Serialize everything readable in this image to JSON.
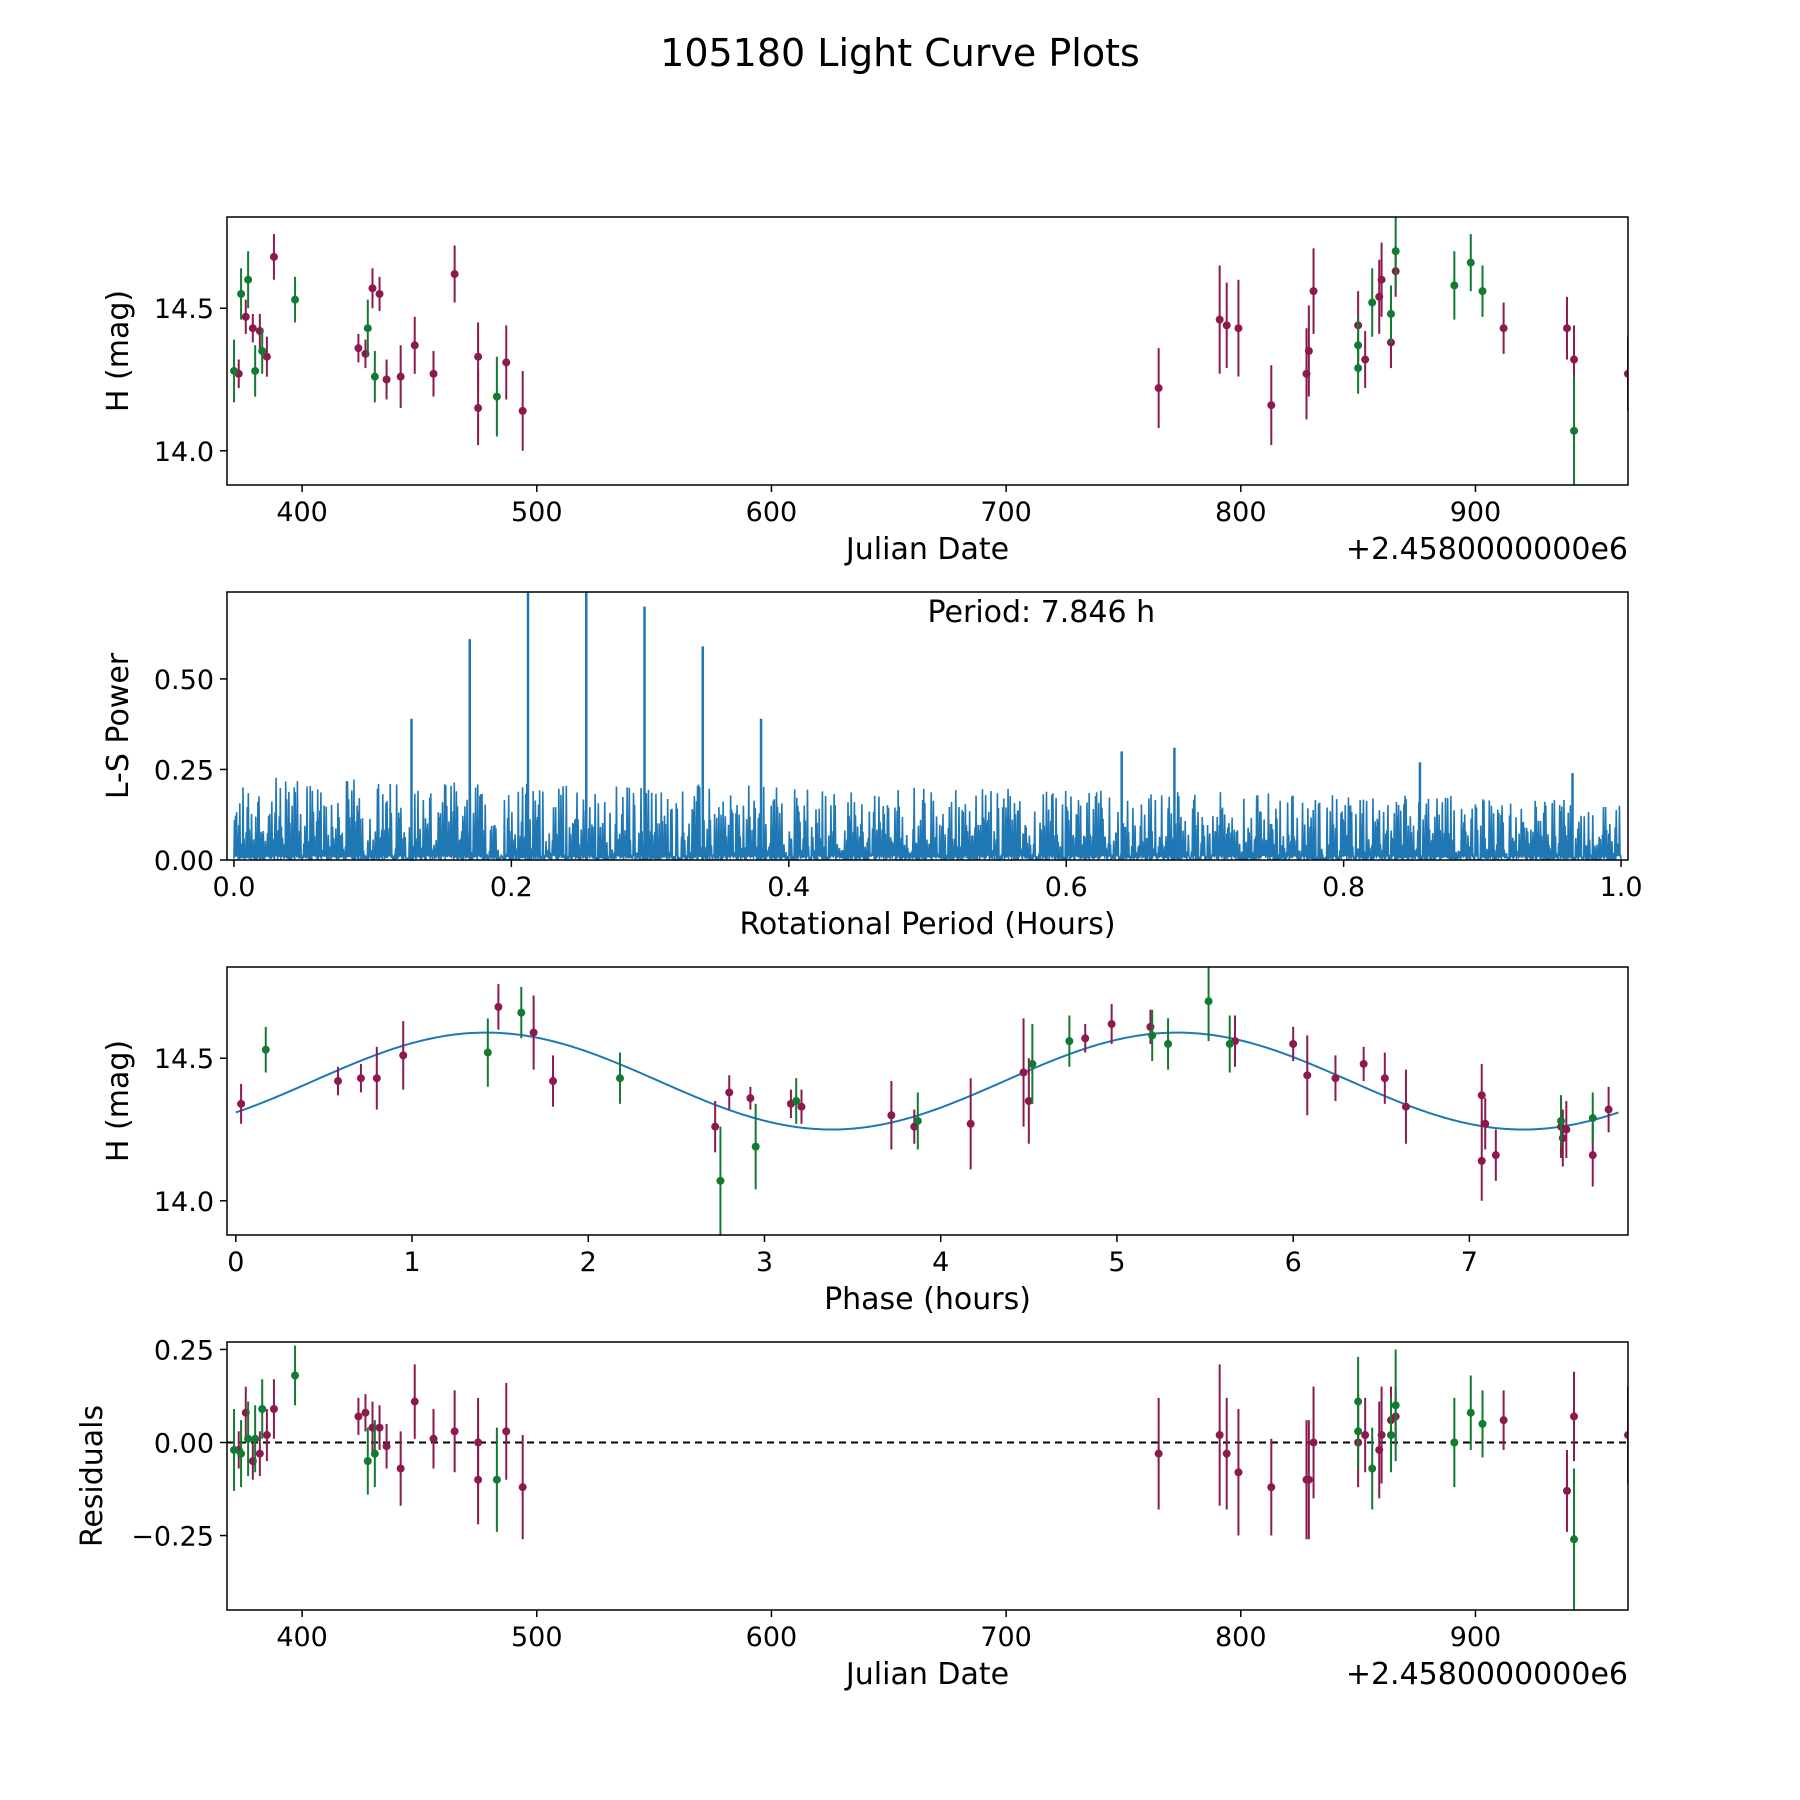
{
  "figure_title": "105180 Light Curve Plots",
  "colors": {
    "red_band": "#8b1a4f",
    "green_band": "#137a32",
    "curve": "#1f77b4",
    "zero_line": "#000000"
  },
  "chart_data": [
    {
      "type": "scatter",
      "id": "lightcurve",
      "title": "",
      "xlabel": "Julian Date",
      "ylabel": "H (mag)",
      "offset_label": "+2.4580000000e6",
      "xlim": [
        368,
        965
      ],
      "ylim": [
        13.88,
        14.82
      ],
      "xticks": [
        400,
        500,
        600,
        700,
        800,
        900
      ],
      "yticks": [
        14.0,
        14.5
      ],
      "ytick_labels": [
        "14.0",
        "14.5"
      ],
      "series": [
        {
          "name": "red",
          "color": "#8b1a4f",
          "points": [
            [
              373,
              14.27,
              0.05
            ],
            [
              376,
              14.47,
              0.06
            ],
            [
              379,
              14.43,
              0.05
            ],
            [
              382,
              14.42,
              0.06
            ],
            [
              385,
              14.33,
              0.07
            ],
            [
              388,
              14.68,
              0.08
            ],
            [
              424,
              14.36,
              0.05
            ],
            [
              427,
              14.34,
              0.05
            ],
            [
              430,
              14.57,
              0.07
            ],
            [
              433,
              14.55,
              0.06
            ],
            [
              436,
              14.25,
              0.07
            ],
            [
              442,
              14.26,
              0.11
            ],
            [
              448,
              14.37,
              0.1
            ],
            [
              456,
              14.27,
              0.08
            ],
            [
              465,
              14.62,
              0.1
            ],
            [
              475,
              14.33,
              0.12
            ],
            [
              475,
              14.15,
              0.13
            ],
            [
              487,
              14.31,
              0.13
            ],
            [
              494,
              14.14,
              0.14
            ],
            [
              765,
              14.22,
              0.14
            ],
            [
              791,
              14.46,
              0.19
            ],
            [
              794,
              14.44,
              0.15
            ],
            [
              799,
              14.43,
              0.17
            ],
            [
              813,
              14.16,
              0.14
            ],
            [
              828,
              14.27,
              0.16
            ],
            [
              829,
              14.35,
              0.16
            ],
            [
              831,
              14.56,
              0.15
            ],
            [
              850,
              14.44,
              0.12
            ],
            [
              853,
              14.32,
              0.1
            ],
            [
              859,
              14.54,
              0.13
            ],
            [
              860,
              14.6,
              0.13
            ],
            [
              864,
              14.38,
              0.09
            ],
            [
              866,
              14.63,
              0.09
            ],
            [
              912,
              14.43,
              0.09
            ],
            [
              939,
              14.43,
              0.11
            ],
            [
              942,
              14.32,
              0.12
            ],
            [
              965,
              14.27,
              0.13
            ]
          ]
        },
        {
          "name": "green",
          "color": "#137a32",
          "points": [
            [
              371,
              14.28,
              0.11
            ],
            [
              374,
              14.55,
              0.09
            ],
            [
              377,
              14.6,
              0.1
            ],
            [
              380,
              14.28,
              0.09
            ],
            [
              383,
              14.35,
              0.08
            ],
            [
              397,
              14.53,
              0.08
            ],
            [
              428,
              14.43,
              0.1
            ],
            [
              431,
              14.26,
              0.09
            ],
            [
              483,
              14.19,
              0.14
            ],
            [
              850,
              14.37,
              0.1
            ],
            [
              850,
              14.29,
              0.09
            ],
            [
              856,
              14.52,
              0.12
            ],
            [
              864,
              14.48,
              0.1
            ],
            [
              866,
              14.7,
              0.14
            ],
            [
              891,
              14.58,
              0.12
            ],
            [
              898,
              14.66,
              0.1
            ],
            [
              903,
              14.56,
              0.09
            ],
            [
              942,
              14.07,
              0.19
            ]
          ]
        }
      ]
    },
    {
      "type": "line",
      "id": "periodogram",
      "title": "",
      "xlabel": "Rotational Period (Hours)",
      "ylabel": "L-S Power",
      "annotation": "Period: 7.846 h",
      "xlim": [
        -0.005,
        1.005
      ],
      "ylim": [
        0.0,
        0.74
      ],
      "xticks": [
        0.0,
        0.2,
        0.4,
        0.6,
        0.8,
        1.0
      ],
      "xtick_labels": [
        "0.0",
        "0.2",
        "0.4",
        "0.6",
        "0.8",
        "1.0"
      ],
      "yticks": [
        0.0,
        0.25,
        0.5
      ],
      "ytick_labels": [
        "0.00",
        "0.25",
        "0.50"
      ],
      "x_range": [
        0.0,
        1.0
      ],
      "noise_level": {
        "start": 0.23,
        "end": 0.17
      },
      "peaks": [
        [
          0.128,
          0.39
        ],
        [
          0.17,
          0.61
        ],
        [
          0.212,
          0.74
        ],
        [
          0.254,
          0.74
        ],
        [
          0.296,
          0.7
        ],
        [
          0.338,
          0.59
        ],
        [
          0.38,
          0.39
        ],
        [
          0.64,
          0.3
        ],
        [
          0.678,
          0.31
        ],
        [
          0.855,
          0.27
        ],
        [
          0.965,
          0.24
        ]
      ]
    },
    {
      "type": "scatter",
      "id": "phased",
      "title": "",
      "xlabel": "Phase (hours)",
      "ylabel": "H (mag)",
      "xlim": [
        -0.05,
        7.9
      ],
      "ylim": [
        13.88,
        14.82
      ],
      "xticks": [
        0,
        1,
        2,
        3,
        4,
        5,
        6,
        7
      ],
      "yticks": [
        14.0,
        14.5
      ],
      "ytick_labels": [
        "14.0",
        "14.5"
      ],
      "model": {
        "mean": 14.42,
        "amplitude": 0.17,
        "period_hours": 7.846,
        "peak_phase": 1.42
      },
      "series": [
        {
          "name": "red",
          "color": "#8b1a4f",
          "points": [
            [
              0.03,
              14.34,
              0.07
            ],
            [
              0.58,
              14.42,
              0.05
            ],
            [
              0.71,
              14.43,
              0.05
            ],
            [
              0.8,
              14.43,
              0.11
            ],
            [
              0.95,
              14.51,
              0.12
            ],
            [
              1.49,
              14.68,
              0.08
            ],
            [
              1.69,
              14.59,
              0.13
            ],
            [
              1.8,
              14.42,
              0.09
            ],
            [
              2.72,
              14.26,
              0.09
            ],
            [
              2.8,
              14.38,
              0.06
            ],
            [
              2.92,
              14.36,
              0.04
            ],
            [
              3.15,
              14.34,
              0.05
            ],
            [
              3.21,
              14.33,
              0.06
            ],
            [
              3.72,
              14.3,
              0.12
            ],
            [
              3.85,
              14.26,
              0.06
            ],
            [
              4.17,
              14.27,
              0.16
            ],
            [
              4.47,
              14.45,
              0.19
            ],
            [
              4.5,
              14.35,
              0.15
            ],
            [
              4.82,
              14.57,
              0.05
            ],
            [
              4.97,
              14.62,
              0.07
            ],
            [
              5.19,
              14.61,
              0.06
            ],
            [
              5.67,
              14.56,
              0.09
            ],
            [
              6.0,
              14.55,
              0.06
            ],
            [
              6.08,
              14.44,
              0.14
            ],
            [
              6.24,
              14.43,
              0.08
            ],
            [
              6.4,
              14.48,
              0.06
            ],
            [
              6.52,
              14.43,
              0.09
            ],
            [
              6.64,
              14.33,
              0.13
            ],
            [
              7.07,
              14.14,
              0.14
            ],
            [
              7.07,
              14.37,
              0.11
            ],
            [
              7.09,
              14.27,
              0.09
            ],
            [
              7.15,
              14.16,
              0.09
            ],
            [
              7.52,
              14.26,
              0.11
            ],
            [
              7.53,
              14.22,
              0.1
            ],
            [
              7.55,
              14.25,
              0.1
            ],
            [
              7.7,
              14.16,
              0.11
            ],
            [
              7.79,
              14.32,
              0.08
            ]
          ]
        },
        {
          "name": "green",
          "color": "#137a32",
          "points": [
            [
              0.17,
              14.53,
              0.08
            ],
            [
              1.43,
              14.52,
              0.12
            ],
            [
              1.62,
              14.66,
              0.09
            ],
            [
              2.18,
              14.43,
              0.09
            ],
            [
              2.75,
              14.07,
              0.19
            ],
            [
              2.95,
              14.19,
              0.15
            ],
            [
              3.18,
              14.35,
              0.08
            ],
            [
              3.87,
              14.28,
              0.1
            ],
            [
              4.52,
              14.48,
              0.14
            ],
            [
              4.73,
              14.56,
              0.09
            ],
            [
              5.2,
              14.58,
              0.09
            ],
            [
              5.29,
              14.55,
              0.09
            ],
            [
              5.52,
              14.7,
              0.14
            ],
            [
              5.64,
              14.55,
              0.1
            ],
            [
              7.52,
              14.28,
              0.09
            ],
            [
              7.7,
              14.29,
              0.09
            ]
          ]
        }
      ]
    },
    {
      "type": "scatter",
      "id": "residuals",
      "title": "",
      "xlabel": "Julian Date",
      "ylabel": "Residuals",
      "offset_label": "+2.4580000000e6",
      "xlim": [
        368,
        965
      ],
      "ylim": [
        -0.45,
        0.27
      ],
      "xticks": [
        400,
        500,
        600,
        700,
        800,
        900
      ],
      "yticks": [
        -0.25,
        0.0,
        0.25
      ],
      "ytick_labels": [
        "−0.25",
        "0.00",
        "0.25"
      ],
      "reference_line": 0.0,
      "series": [
        {
          "name": "red",
          "color": "#8b1a4f",
          "points": [
            [
              373,
              -0.02,
              0.05
            ],
            [
              376,
              0.08,
              0.07
            ],
            [
              379,
              -0.05,
              0.05
            ],
            [
              382,
              -0.03,
              0.06
            ],
            [
              385,
              0.02,
              0.07
            ],
            [
              388,
              0.09,
              0.08
            ],
            [
              424,
              0.07,
              0.05
            ],
            [
              427,
              0.08,
              0.05
            ],
            [
              430,
              0.04,
              0.07
            ],
            [
              433,
              0.04,
              0.06
            ],
            [
              436,
              -0.01,
              0.06
            ],
            [
              442,
              -0.07,
              0.1
            ],
            [
              448,
              0.11,
              0.1
            ],
            [
              456,
              0.01,
              0.08
            ],
            [
              465,
              0.03,
              0.11
            ],
            [
              475,
              -0.1,
              0.12
            ],
            [
              475,
              0.0,
              0.12
            ],
            [
              487,
              0.03,
              0.13
            ],
            [
              494,
              -0.12,
              0.14
            ],
            [
              765,
              -0.03,
              0.15
            ],
            [
              791,
              0.02,
              0.19
            ],
            [
              794,
              -0.03,
              0.15
            ],
            [
              799,
              -0.08,
              0.17
            ],
            [
              813,
              -0.12,
              0.13
            ],
            [
              828,
              -0.1,
              0.16
            ],
            [
              829,
              -0.1,
              0.16
            ],
            [
              831,
              0.0,
              0.15
            ],
            [
              850,
              0.0,
              0.12
            ],
            [
              853,
              0.02,
              0.1
            ],
            [
              859,
              -0.02,
              0.13
            ],
            [
              860,
              0.02,
              0.13
            ],
            [
              864,
              0.06,
              0.09
            ],
            [
              866,
              0.07,
              0.08
            ],
            [
              912,
              0.06,
              0.08
            ],
            [
              939,
              -0.13,
              0.11
            ],
            [
              942,
              0.07,
              0.12
            ],
            [
              965,
              0.02,
              0.13
            ]
          ]
        },
        {
          "name": "green",
          "color": "#137a32",
          "points": [
            [
              371,
              -0.02,
              0.11
            ],
            [
              374,
              -0.03,
              0.09
            ],
            [
              377,
              0.01,
              0.1
            ],
            [
              380,
              0.01,
              0.09
            ],
            [
              383,
              0.09,
              0.08
            ],
            [
              397,
              0.18,
              0.08
            ],
            [
              428,
              -0.05,
              0.09
            ],
            [
              431,
              -0.03,
              0.09
            ],
            [
              483,
              -0.1,
              0.14
            ],
            [
              850,
              0.11,
              0.12
            ],
            [
              850,
              0.03,
              0.1
            ],
            [
              856,
              -0.07,
              0.11
            ],
            [
              864,
              0.02,
              0.1
            ],
            [
              866,
              0.1,
              0.15
            ],
            [
              891,
              0.0,
              0.12
            ],
            [
              898,
              0.08,
              0.1
            ],
            [
              903,
              0.05,
              0.09
            ],
            [
              942,
              -0.26,
              0.19
            ]
          ]
        }
      ]
    }
  ]
}
